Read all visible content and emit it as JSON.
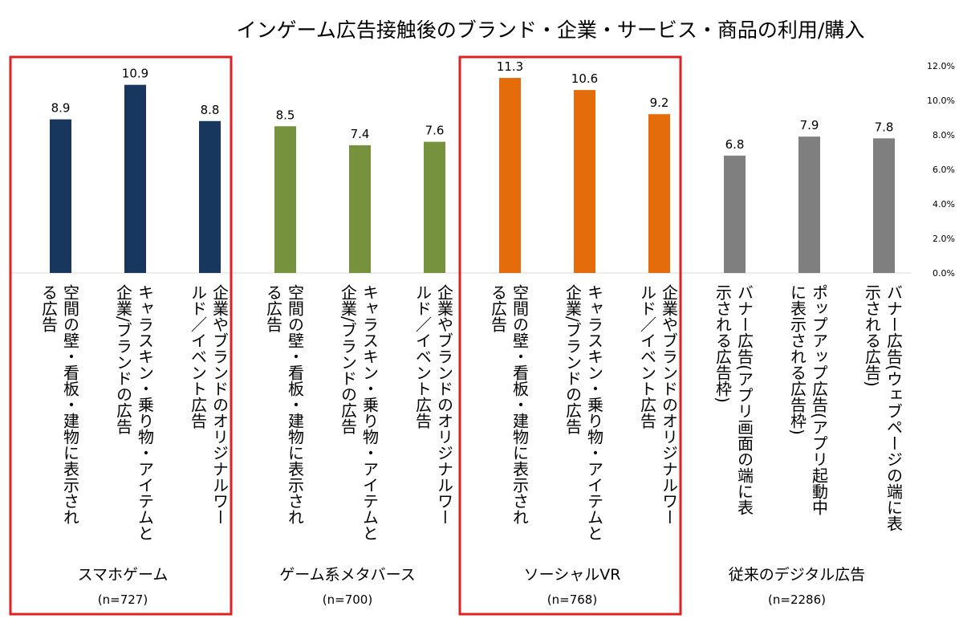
{
  "chart_data": {
    "type": "bar",
    "title": "インゲーム広告接触後のブランド・企業・サービス・商品の利用/購入",
    "ylim": [
      0,
      12
    ],
    "yticks": [
      "0.0%",
      "2.0%",
      "4.0%",
      "6.0%",
      "8.0%",
      "10.0%",
      "12.0%"
    ],
    "grid": false,
    "groups": [
      {
        "name": "スマホゲーム",
        "n": "(n=727)",
        "color": "#17375e",
        "highlighted": true,
        "bars": [
          {
            "label_lines": [
              "空間の壁・看板・建物に表示され",
              "る広告"
            ],
            "value": 8.9
          },
          {
            "label_lines": [
              "キャラスキン・乗り物・アイテムと",
              "企業/ブランドの広告"
            ],
            "value": 10.9
          },
          {
            "label_lines": [
              "企業やブランドのオリジナルワー",
              "ルド／イベント広告"
            ],
            "value": 8.8
          }
        ]
      },
      {
        "name": "ゲーム系メタバース",
        "n": "(n=700)",
        "color": "#76923c",
        "highlighted": false,
        "bars": [
          {
            "label_lines": [
              "空間の壁・看板・建物に表示され",
              "る広告"
            ],
            "value": 8.5
          },
          {
            "label_lines": [
              "キャラスキン・乗り物・アイテムと",
              "企業/ブランドの広告"
            ],
            "value": 7.4
          },
          {
            "label_lines": [
              "企業やブランドのオリジナルワー",
              "ルド／イベント広告"
            ],
            "value": 7.6
          }
        ]
      },
      {
        "name": "ソーシャルVR",
        "n": "(n=768)",
        "color": "#e46c0a",
        "highlighted": true,
        "bars": [
          {
            "label_lines": [
              "空間の壁・看板・建物に表示され",
              "る広告"
            ],
            "value": 11.3
          },
          {
            "label_lines": [
              "キャラスキン・乗り物・アイテムと",
              "企業/ブランドの広告"
            ],
            "value": 10.6
          },
          {
            "label_lines": [
              "企業やブランドのオリジナルワー",
              "ルド／イベント広告"
            ],
            "value": 9.2
          }
        ]
      },
      {
        "name": "従来のデジタル広告",
        "n": "(n=2286)",
        "color": "#7f7f7f",
        "highlighted": false,
        "bars": [
          {
            "label_lines": [
              "バナー広告(アプリ画面の端に表",
              "示される広告枠)"
            ],
            "value": 6.8
          },
          {
            "label_lines": [
              "ポップアップ広告(アプリ起動中",
              "に表示される広告枠)"
            ],
            "value": 7.9
          },
          {
            "label_lines": [
              "バナー広告(ウェブページの端に表",
              "示される広告)"
            ],
            "value": 7.8
          }
        ]
      }
    ]
  },
  "colors": {
    "highlight_box": "#e02020",
    "gridline": "#d9d9d9",
    "text": "#000000"
  }
}
